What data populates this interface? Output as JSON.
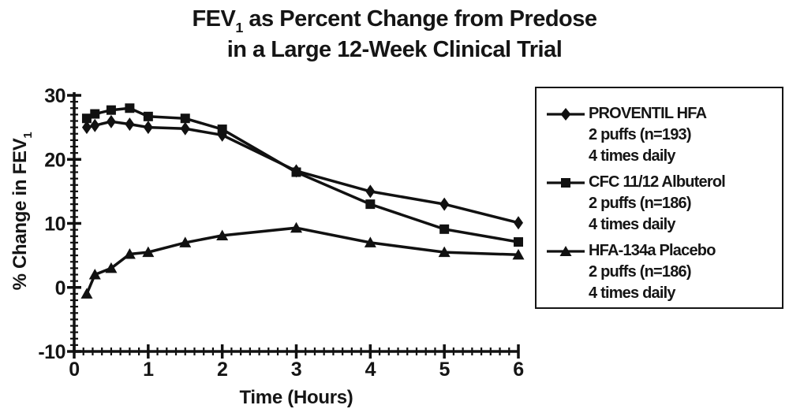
{
  "title": {
    "line1_pre": "FEV",
    "line1_sub": "1",
    "line1_post": " as Percent Change from Predose",
    "line2": "in a Large 12-Week Clinical Trial"
  },
  "axes": {
    "xlabel": "Time (Hours)",
    "ylabel_pre": "% Change in FEV",
    "ylabel_sub": "1"
  },
  "chart_data": {
    "type": "line",
    "title": "FEV1 as Percent Change from Predose in a Large 12-Week Clinical Trial",
    "xlabel": "Time (Hours)",
    "ylabel": "% Change in FEV1",
    "xlim": [
      0,
      6
    ],
    "ylim": [
      -10,
      30
    ],
    "x_major_ticks": [
      0,
      1,
      2,
      3,
      4,
      5,
      6
    ],
    "x_minor_step": 0.125,
    "y_major_ticks": [
      -10,
      0,
      10,
      20,
      30
    ],
    "y_minor_step": 1,
    "grid": false,
    "legend_position": "right",
    "line_color": "#111111",
    "x": [
      0.17,
      0.28,
      0.5,
      0.75,
      1,
      1.5,
      2,
      3,
      4,
      5,
      6
    ],
    "series": [
      {
        "name": "PROVENTIL HFA",
        "marker": "diamond",
        "legend_lines": [
          "PROVENTIL HFA",
          "2 puffs (n=193)",
          "4 times daily"
        ],
        "values": [
          25,
          25.3,
          25.9,
          25.5,
          25,
          24.8,
          23.8,
          18.2,
          15,
          13,
          10.1
        ]
      },
      {
        "name": "CFC 11/12 Albuterol",
        "marker": "square",
        "legend_lines": [
          "CFC 11/12 Albuterol",
          "2 puffs (n=186)",
          "4 times daily"
        ],
        "values": [
          26.4,
          27.1,
          27.7,
          28,
          26.7,
          26.4,
          24.7,
          18,
          13,
          9.1,
          7.1
        ]
      },
      {
        "name": "HFA-134a Placebo",
        "marker": "triangle",
        "legend_lines": [
          "HFA-134a Placebo",
          "2 puffs (n=186)",
          "4 times daily"
        ],
        "values": [
          -1,
          2,
          3,
          5.2,
          5.5,
          7,
          8.1,
          9.3,
          7,
          5.5,
          5.1
        ]
      }
    ]
  }
}
